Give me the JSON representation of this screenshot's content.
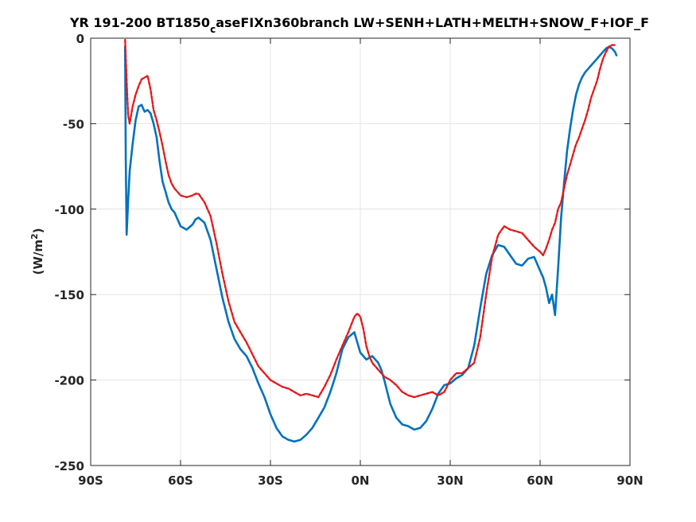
{
  "chart_data": {
    "type": "line",
    "title_main": "YR 191-200 BT1850",
    "title_sub": "c",
    "title_rest": "aseFIXn360branch LW+SENH+LATH+MELTH+SNOW_F+IOF_F",
    "ylabel_main": "(W/m",
    "ylabel_sup": "2",
    "ylabel_close": ")",
    "xlim": [
      -90,
      90
    ],
    "ylim": [
      -250,
      0
    ],
    "xticks": [
      -90,
      -60,
      -30,
      0,
      30,
      60,
      90
    ],
    "xtick_labels": [
      "90S",
      "60S",
      "30S",
      "0N",
      "30N",
      "60N",
      "90N"
    ],
    "yticks": [
      0,
      -50,
      -100,
      -150,
      -200,
      -250
    ],
    "ytick_labels": [
      "0",
      "-50",
      "-100",
      "-150",
      "-200",
      "-250"
    ],
    "grid": true,
    "series": [
      {
        "color": "#0072BD",
        "style": "solid",
        "x": [
          -78.5,
          -78.3,
          -78.0,
          -77.5,
          -77.0,
          -76.0,
          -75.0,
          -74.0,
          -73.0,
          -72.0,
          -71.0,
          -70.0,
          -69.0,
          -68.0,
          -67.0,
          -66.0,
          -65.0,
          -64.0,
          -63.0,
          -62.0,
          -60.0,
          -58.0,
          -56.0,
          -55.0,
          -54.0,
          -52.0,
          -50.0,
          -48.0,
          -46.0,
          -44.0,
          -42.0,
          -40.0,
          -38.0,
          -36.0,
          -34.0,
          -32.0,
          -30.0,
          -28.0,
          -26.0,
          -24.0,
          -22.0,
          -20.0,
          -18.0,
          -16.0,
          -14.0,
          -12.0,
          -10.0,
          -8.0,
          -6.0,
          -4.0,
          -2.0,
          -1.0,
          0.0,
          1.0,
          2.0,
          3.0,
          4.0,
          5.0,
          6.0,
          7.0,
          8.0,
          10.0,
          12.0,
          14.0,
          16.0,
          18.0,
          20.0,
          22.0,
          24.0,
          26.0,
          28.0,
          30.0,
          32.0,
          34.0,
          36.0,
          38.0,
          40.0,
          42.0,
          44.0,
          46.0,
          48.0,
          50.0,
          52.0,
          54.0,
          56.0,
          58.0,
          60.0,
          61.0,
          62.0,
          63.0,
          64.0,
          65.0,
          66.0,
          67.0,
          68.0,
          69.0,
          70.0,
          71.0,
          72.0,
          73.0,
          74.0,
          75.0,
          76.0,
          77.0,
          78.0,
          79.0,
          80.0,
          81.0,
          82.0,
          83.0,
          84.0,
          85.0,
          85.5
        ],
        "y": [
          -5,
          -70,
          -115,
          -95,
          -78,
          -62,
          -48,
          -40,
          -39,
          -43,
          -42,
          -44,
          -50,
          -58,
          -72,
          -84,
          -90,
          -96,
          -100,
          -102,
          -110,
          -112,
          -109,
          -106,
          -105,
          -108,
          -118,
          -135,
          -152,
          -166,
          -176,
          -182,
          -186,
          -193,
          -202,
          -210,
          -220,
          -228,
          -233,
          -235,
          -236,
          -235,
          -232,
          -228,
          -222,
          -216,
          -207,
          -196,
          -182,
          -175,
          -172,
          -178,
          -184,
          -186,
          -188,
          -187,
          -186,
          -188,
          -190,
          -194,
          -200,
          -214,
          -222,
          -226,
          -227,
          -229,
          -228,
          -224,
          -217,
          -208,
          -203,
          -202,
          -199,
          -197,
          -193,
          -180,
          -158,
          -138,
          -127,
          -121,
          -122,
          -127,
          -132,
          -133,
          -129,
          -128,
          -136,
          -140,
          -146,
          -155,
          -150,
          -162,
          -135,
          -105,
          -85,
          -66,
          -53,
          -42,
          -33,
          -27,
          -23,
          -20,
          -18,
          -16,
          -14,
          -12,
          -10,
          -8,
          -6,
          -5,
          -6,
          -8,
          -10
        ]
      },
      {
        "color": "#E31A1C",
        "style": "dashed",
        "x": [
          -78.5,
          -78.0,
          -77.5,
          -77.0,
          -76.0,
          -75.0,
          -74.0,
          -73.0,
          -72.0,
          -71.0,
          -70.0,
          -69.0,
          -68.0,
          -67.0,
          -66.0,
          -65.0,
          -64.0,
          -63.0,
          -62.0,
          -60.0,
          -58.0,
          -56.0,
          -55.0,
          -54.0,
          -52.0,
          -50.0,
          -48.0,
          -46.0,
          -44.0,
          -42.0,
          -40.0,
          -38.0,
          -36.0,
          -34.0,
          -32.0,
          -30.0,
          -28.0,
          -26.0,
          -24.0,
          -22.0,
          -20.0,
          -18.0,
          -16.0,
          -14.0,
          -12.0,
          -10.0,
          -8.0,
          -6.0,
          -4.0,
          -2.0,
          -1.0,
          0.0,
          1.0,
          2.0,
          3.0,
          4.0,
          6.0,
          8.0,
          10.0,
          12.0,
          14.0,
          16.0,
          18.0,
          20.0,
          22.0,
          24.0,
          26.0,
          28.0,
          30.0,
          32.0,
          34.0,
          36.0,
          38.0,
          40.0,
          42.0,
          44.0,
          46.0,
          48.0,
          50.0,
          52.0,
          54.0,
          56.0,
          58.0,
          60.0,
          61.0,
          62.0,
          63.0,
          64.0,
          65.0,
          66.0,
          67.0,
          68.0,
          69.0,
          70.0,
          71.0,
          72.0,
          73.0,
          74.0,
          75.0,
          76.0,
          77.0,
          78.0,
          79.0,
          80.0,
          81.0,
          82.0,
          83.0,
          84.0,
          85.0
        ],
        "y": [
          -1,
          -25,
          -45,
          -50,
          -40,
          -33,
          -28,
          -24,
          -23,
          -22,
          -30,
          -42,
          -48,
          -55,
          -63,
          -72,
          -80,
          -85,
          -88,
          -92,
          -93,
          -92,
          -91,
          -91,
          -96,
          -104,
          -120,
          -138,
          -154,
          -166,
          -172,
          -178,
          -185,
          -192,
          -196,
          -200,
          -202,
          -204,
          -205,
          -207,
          -209,
          -208,
          -209,
          -210,
          -204,
          -197,
          -188,
          -180,
          -172,
          -163,
          -161,
          -163,
          -170,
          -180,
          -186,
          -190,
          -194,
          -198,
          -200,
          -203,
          -207,
          -209,
          -210,
          -209,
          -208,
          -207,
          -209,
          -207,
          -200,
          -196,
          -196,
          -193,
          -190,
          -175,
          -150,
          -128,
          -115,
          -110,
          -112,
          -113,
          -114,
          -118,
          -122,
          -125,
          -127,
          -123,
          -118,
          -112,
          -108,
          -100,
          -96,
          -88,
          -80,
          -74,
          -68,
          -62,
          -58,
          -53,
          -48,
          -42,
          -35,
          -30,
          -25,
          -18,
          -12,
          -8,
          -5,
          -4,
          -4
        ]
      }
    ]
  }
}
